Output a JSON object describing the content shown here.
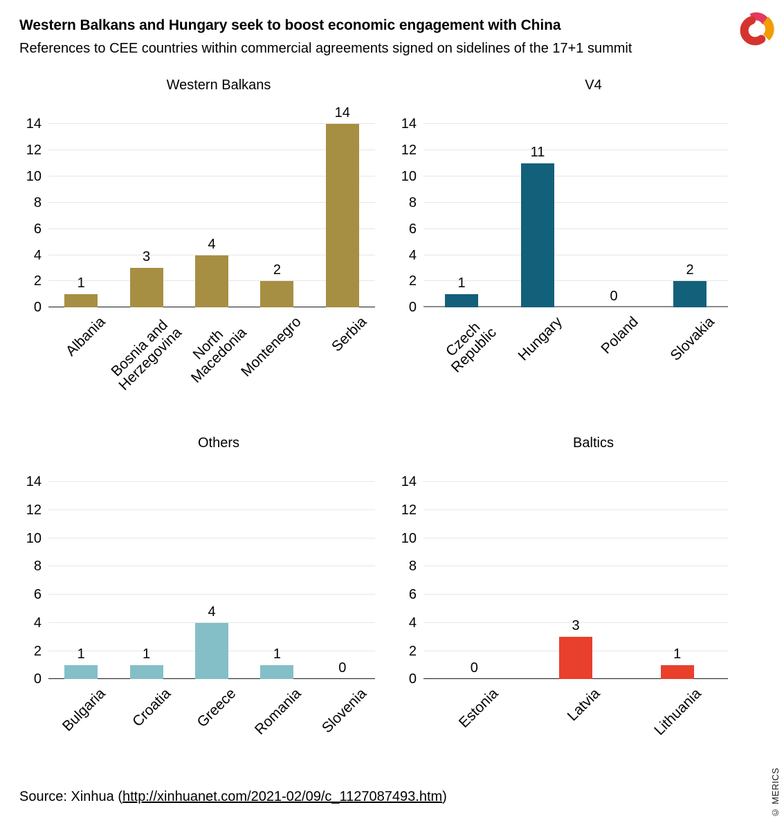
{
  "header": {
    "title": "Western Balkans and Hungary seek to boost economic engagement with China",
    "subtitle": "References to CEE countries within commercial agreements signed on sidelines of the 17+1 summit"
  },
  "footer": {
    "source_prefix": "Source: Xinhua (",
    "source_link": "http://xinhuanet.com/2021-02/09/c_1127087493.htm",
    "source_suffix": ")",
    "copyright": "© MERICS"
  },
  "logo": {
    "name": "merics-logo",
    "colors": {
      "red": "#d5342e",
      "pink": "#e23a5f",
      "orange": "#f29c00"
    }
  },
  "colors": {
    "gridline": "#e7e7e7",
    "text": "#000000"
  },
  "chart_data": [
    {
      "type": "bar",
      "title": "Western Balkans",
      "categories": [
        "Albania",
        "Bosnia and\nHerzegovina",
        "North\nMacedonia",
        "Montenegro",
        "Serbia"
      ],
      "values": [
        1,
        3,
        4,
        2,
        14
      ],
      "bar_color": "#a68f43",
      "axis_color": "#1a1a1a",
      "axis_width": 1.5,
      "xlabel": "",
      "ylabel": "",
      "ylim": [
        0,
        14
      ],
      "yticks": [
        0,
        2,
        4,
        6,
        8,
        10,
        12,
        14
      ],
      "grid": true,
      "value_labels": true,
      "legend": false
    },
    {
      "type": "bar",
      "title": "V4",
      "categories": [
        "Czech\nRepublic",
        "Hungary",
        "Poland",
        "Slovakia"
      ],
      "values": [
        1,
        11,
        0,
        2
      ],
      "bar_color": "#13607a",
      "axis_color": "#8a8a8a",
      "axis_width": 2.5,
      "xlabel": "",
      "ylabel": "",
      "ylim": [
        0,
        14
      ],
      "yticks": [
        0,
        2,
        4,
        6,
        8,
        10,
        12,
        14
      ],
      "grid": true,
      "value_labels": true,
      "legend": false
    },
    {
      "type": "bar",
      "title": "Others",
      "categories": [
        "Bulgaria",
        "Croatia",
        "Greece",
        "Romania",
        "Slovenia"
      ],
      "values": [
        1,
        1,
        4,
        1,
        0
      ],
      "bar_color": "#84bfc7",
      "axis_color": "#1a1a1a",
      "axis_width": 1.5,
      "xlabel": "",
      "ylabel": "",
      "ylim": [
        0,
        14
      ],
      "yticks": [
        0,
        2,
        4,
        6,
        8,
        10,
        12,
        14
      ],
      "grid": true,
      "value_labels": true,
      "legend": false
    },
    {
      "type": "bar",
      "title": "Baltics",
      "categories": [
        "Estonia",
        "Latvia",
        "Lithuania"
      ],
      "values": [
        0,
        3,
        1
      ],
      "bar_color": "#e8402c",
      "axis_color": "#1a1a1a",
      "axis_width": 1.5,
      "xlabel": "",
      "ylabel": "",
      "ylim": [
        0,
        14
      ],
      "yticks": [
        0,
        2,
        4,
        6,
        8,
        10,
        12,
        14
      ],
      "grid": true,
      "value_labels": true,
      "legend": false
    }
  ]
}
